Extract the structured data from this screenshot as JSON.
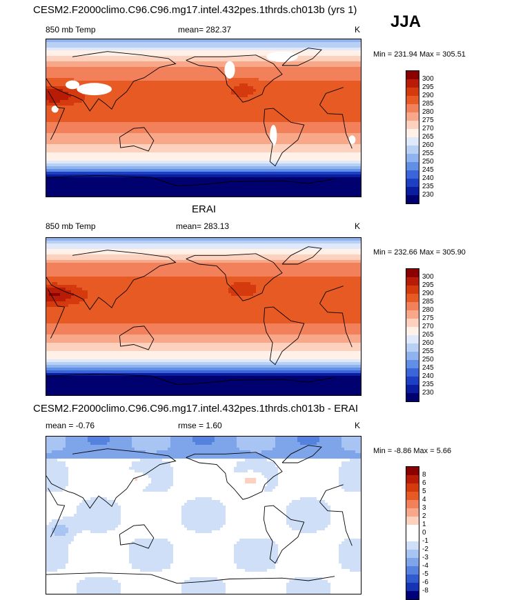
{
  "header": {
    "model_title": "CESM2.F2000climo.C96.C96.mg17.intel.432pes.1thrds.ch013b (yrs 1)",
    "season": "JJA"
  },
  "panels": [
    {
      "id": "model",
      "title": "",
      "left": "850 mb Temp",
      "center": "mean= 282.37",
      "right": "K",
      "minmax": "Min = 231.94 Max = 305.51"
    },
    {
      "id": "obs",
      "title": "ERAI",
      "left": "850 mb Temp",
      "center": "mean= 283.13",
      "right": "K",
      "minmax": "Min = 232.66 Max = 305.90"
    },
    {
      "id": "diff",
      "title": "CESM2.F2000climo.C96.C96.mg17.intel.432pes.1thrds.ch013b - ERAI",
      "left": "mean =  -0.76",
      "center": "rmse =   1.60",
      "right": "K",
      "minmax": "Min =  -8.86 Max =   5.66"
    }
  ],
  "colorbars": {
    "temperature": {
      "labels": [
        "300",
        "295",
        "290",
        "285",
        "280",
        "275",
        "270",
        "265",
        "260",
        "255",
        "250",
        "245",
        "240",
        "235",
        "230"
      ],
      "colors": [
        "#8b0000",
        "#b81c06",
        "#d43a0e",
        "#e85a24",
        "#f2805a",
        "#f8a888",
        "#fcd2bf",
        "#fff1e8",
        "#dfe9fb",
        "#b9d0f5",
        "#8fb3ef",
        "#628fe6",
        "#3b66d9",
        "#1c3fc4",
        "#0a1d9e",
        "#00006e"
      ]
    },
    "difference": {
      "labels": [
        "8",
        "6",
        "5",
        "4",
        "3",
        "2",
        "1",
        "0",
        "-1",
        "-2",
        "-3",
        "-4",
        "-5",
        "-6",
        "-8"
      ],
      "colors": [
        "#8b0000",
        "#b81c06",
        "#d43a0e",
        "#e85a24",
        "#f2805a",
        "#f8a888",
        "#fcd2bf",
        "#ffffff",
        "#ffffff",
        "#cfdff8",
        "#a8c4f2",
        "#7ea4ea",
        "#5582df",
        "#2f5bcf",
        "#1434b4",
        "#00007a"
      ]
    }
  },
  "chart_data": [
    {
      "type": "heatmap",
      "title": "CESM2.F2000climo.C96.C96.mg17.intel.432pes.1thrds.ch013b (yrs 1)",
      "variable": "850 mb Temp",
      "units": "K",
      "mean": 282.37,
      "min": 231.94,
      "max": 305.51,
      "projection": "cylindrical equidistant, centered on Pacific",
      "color_levels": [
        230,
        235,
        240,
        245,
        250,
        255,
        260,
        265,
        270,
        275,
        280,
        285,
        290,
        295,
        300
      ]
    },
    {
      "type": "heatmap",
      "title": "ERAI",
      "variable": "850 mb Temp",
      "units": "K",
      "mean": 283.13,
      "min": 232.66,
      "max": 305.9,
      "color_levels": [
        230,
        235,
        240,
        245,
        250,
        255,
        260,
        265,
        270,
        275,
        280,
        285,
        290,
        295,
        300
      ]
    },
    {
      "type": "heatmap",
      "title": "CESM2.F2000climo.C96.C96.mg17.intel.432pes.1thrds.ch013b - ERAI",
      "units": "K",
      "mean": -0.76,
      "rmse": 1.6,
      "min": -8.86,
      "max": 5.66,
      "color_levels": [
        -8,
        -6,
        -5,
        -4,
        -3,
        -2,
        -1,
        0,
        1,
        2,
        3,
        4,
        5,
        6,
        8
      ]
    }
  ]
}
